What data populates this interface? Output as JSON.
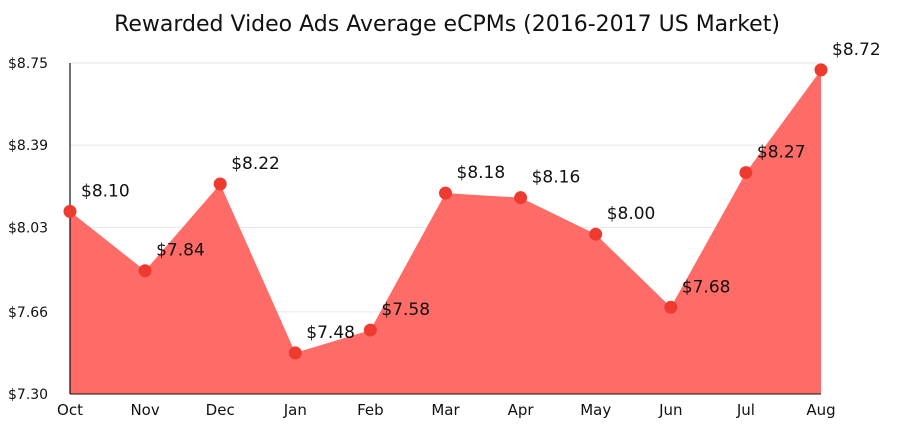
{
  "chart_data": {
    "type": "area",
    "title": "Rewarded Video Ads Average eCPMs (2016-2017 US Market)",
    "xlabel": "",
    "ylabel": "",
    "categories": [
      "Oct",
      "Nov",
      "Dec",
      "Jan",
      "Feb",
      "Mar",
      "Apr",
      "May",
      "Jun",
      "Jul",
      "Aug"
    ],
    "values": [
      8.1,
      7.84,
      8.22,
      7.48,
      7.58,
      8.18,
      8.16,
      8.0,
      7.68,
      8.27,
      8.72
    ],
    "data_labels": [
      "$8.10",
      "$7.84",
      "$8.22",
      "$7.48",
      "$7.58",
      "$8.18",
      "$8.16",
      "$8.00",
      "$7.68",
      "$8.27",
      "$8.72"
    ],
    "y_ticks": [
      7.3,
      7.66,
      8.03,
      8.39,
      8.75
    ],
    "y_tick_labels": [
      "$7.30",
      "$7.66",
      "$8.03",
      "$8.39",
      "$8.75"
    ],
    "ylim": [
      7.3,
      8.75
    ],
    "grid": true,
    "legend": "none",
    "colors": {
      "area": "#ff6b67",
      "marker": "#ee3b2f",
      "grid": "#e6e6e6",
      "axis": "#111111"
    }
  }
}
